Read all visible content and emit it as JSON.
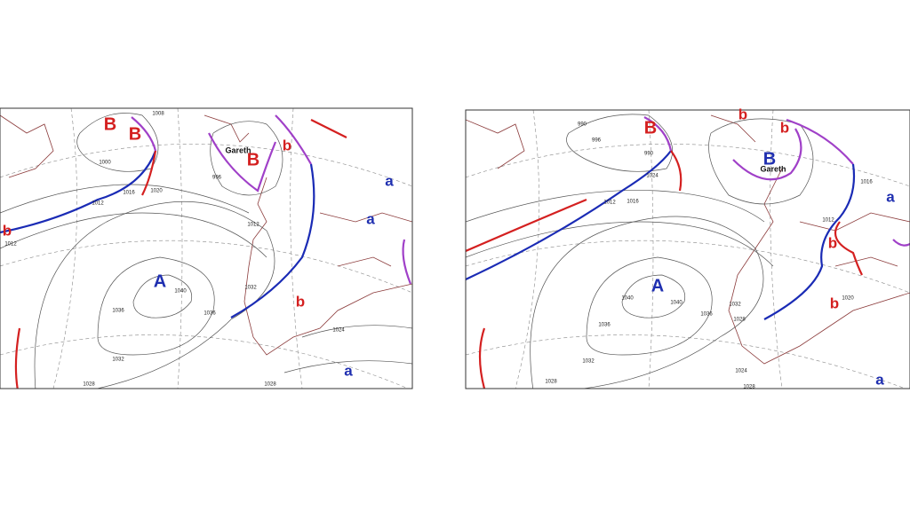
{
  "maps": [
    {
      "labels": [
        "B",
        "B",
        "B",
        "Gareth",
        "b",
        "b",
        "b",
        "A",
        "a",
        "a",
        "a",
        "1012",
        "1012",
        "1016",
        "1020",
        "1040",
        "1036",
        "1032",
        "1028",
        "1036",
        "1032",
        "1028",
        "1024",
        "1012",
        "996",
        "1008",
        "1000"
      ]
    },
    {
      "labels": [
        "B",
        "b",
        "b",
        "B",
        "Gareth",
        "b",
        "b",
        "A",
        "a",
        "a",
        "1012",
        "1016",
        "990",
        "996",
        "990",
        "1024",
        "1012",
        "1040",
        "1036",
        "1032",
        "1028",
        "1040",
        "1036",
        "1032",
        "1028",
        "1024",
        "1016",
        "1020",
        "1028"
      ]
    }
  ]
}
